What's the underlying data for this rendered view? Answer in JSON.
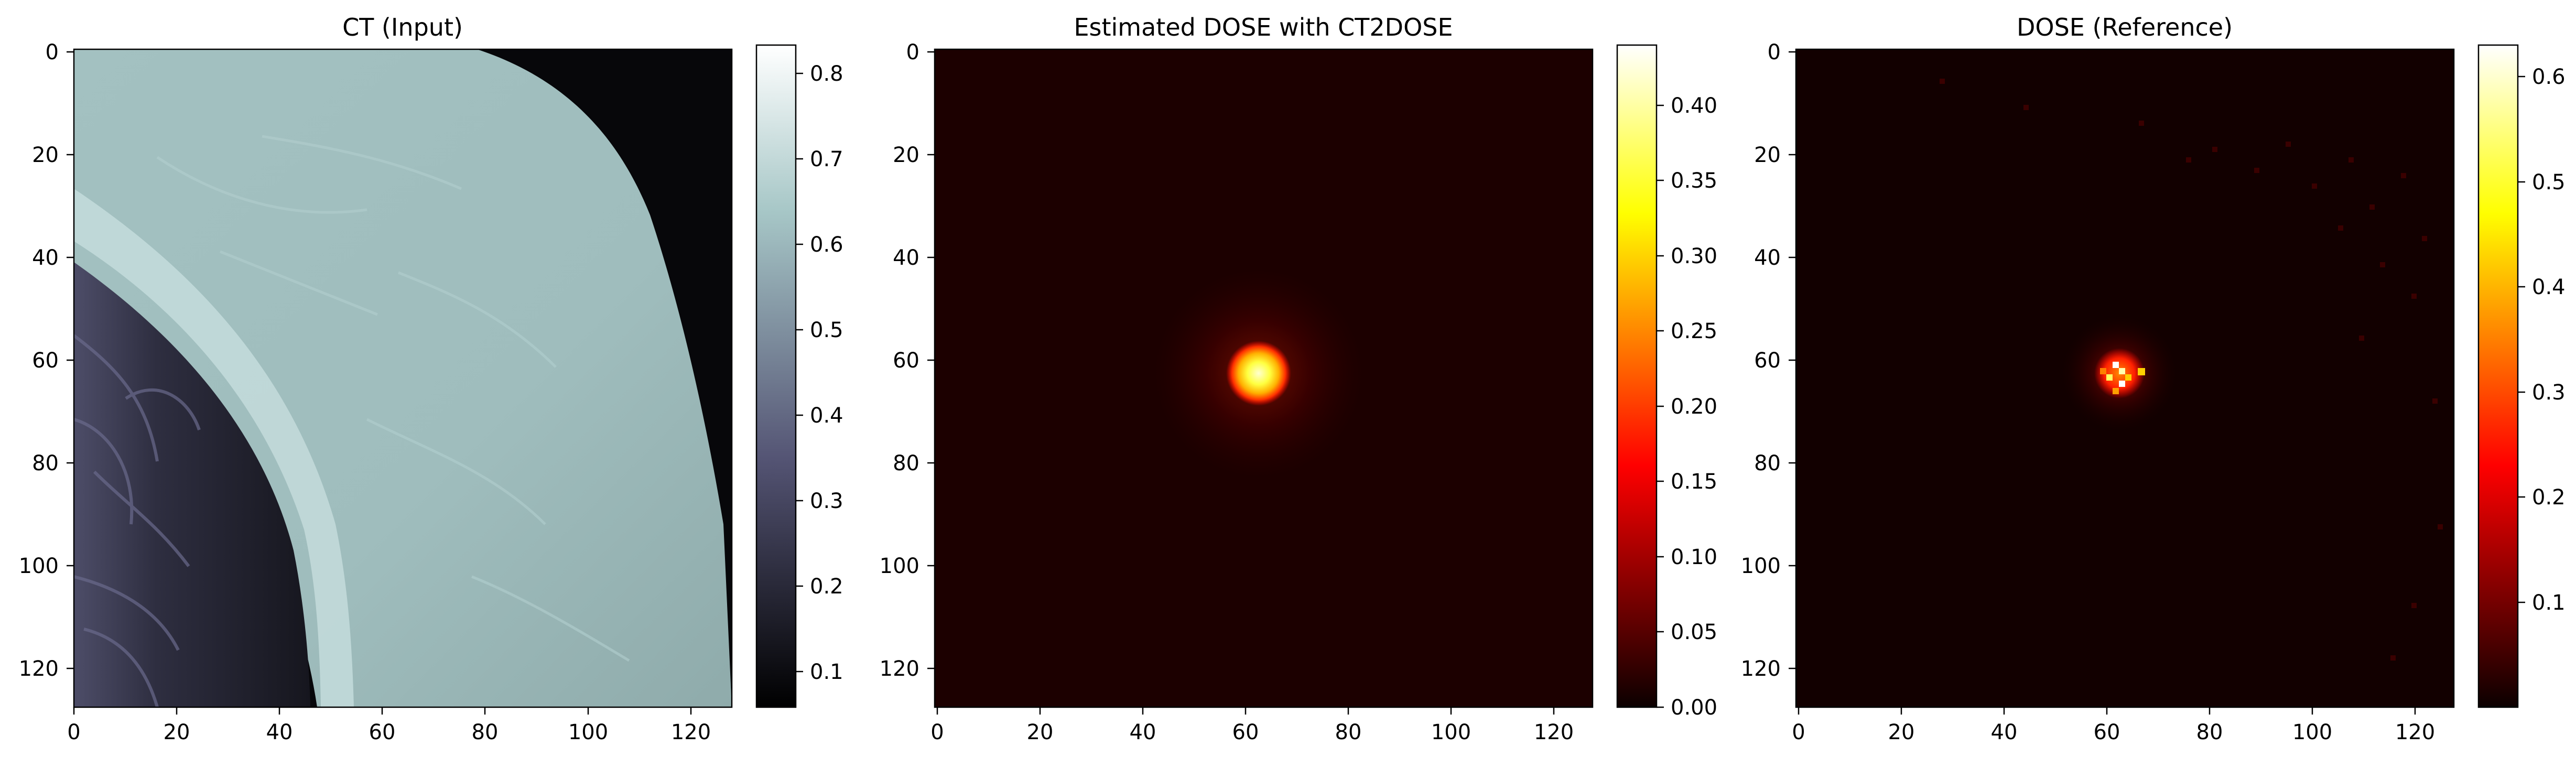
{
  "figure": {
    "panels": [
      {
        "id": "ct",
        "title": "CT (Input)",
        "colormap": "bone"
      },
      {
        "id": "est",
        "title": "Estimated DOSE with CT2DOSE",
        "colormap": "hot"
      },
      {
        "id": "ref",
        "title": "DOSE (Reference)",
        "colormap": "hot"
      }
    ]
  },
  "chart_data": [
    {
      "type": "heatmap",
      "title": "CT (Input)",
      "xlabel": "",
      "ylabel": "",
      "x_ticks": [
        0,
        20,
        40,
        60,
        80,
        100,
        120
      ],
      "y_ticks": [
        0,
        20,
        40,
        60,
        80,
        100,
        120
      ],
      "xlim": [
        0,
        127
      ],
      "ylim": [
        127,
        0
      ],
      "colormap": "bone",
      "colorbar": {
        "ticks": [
          "0.1",
          "0.2",
          "0.3",
          "0.4",
          "0.5",
          "0.6",
          "0.7",
          "0.8"
        ],
        "vmin": 0.06,
        "vmax": 0.835
      },
      "content": "breast tissue arc with chest wall and lung at left"
    },
    {
      "type": "heatmap",
      "title": "Estimated DOSE with CT2DOSE",
      "xlabel": "",
      "ylabel": "",
      "x_ticks": [
        0,
        20,
        40,
        60,
        80,
        100,
        120
      ],
      "y_ticks": [
        0,
        20,
        40,
        60,
        80,
        100,
        120
      ],
      "xlim": [
        0,
        127
      ],
      "ylim": [
        127,
        0
      ],
      "colormap": "hot",
      "colorbar": {
        "ticks": [
          "0.00",
          "0.05",
          "0.10",
          "0.15",
          "0.20",
          "0.25",
          "0.30",
          "0.35",
          "0.40"
        ],
        "vmin": 0.0,
        "vmax": 0.44
      },
      "hotspot": {
        "x": 63,
        "y": 63,
        "peak": 0.44
      }
    },
    {
      "type": "heatmap",
      "title": "DOSE (Reference)",
      "xlabel": "",
      "ylabel": "",
      "x_ticks": [
        0,
        20,
        40,
        60,
        80,
        100,
        120
      ],
      "y_ticks": [
        0,
        20,
        40,
        60,
        80,
        100,
        120
      ],
      "xlim": [
        0,
        127
      ],
      "ylim": [
        127,
        0
      ],
      "colormap": "hot",
      "colorbar": {
        "ticks": [
          "0.1",
          "0.2",
          "0.3",
          "0.4",
          "0.5",
          "0.6"
        ],
        "vmin": 0.0,
        "vmax": 0.63
      },
      "hotspot": {
        "x": 63,
        "y": 63,
        "peak": 0.63
      }
    }
  ]
}
